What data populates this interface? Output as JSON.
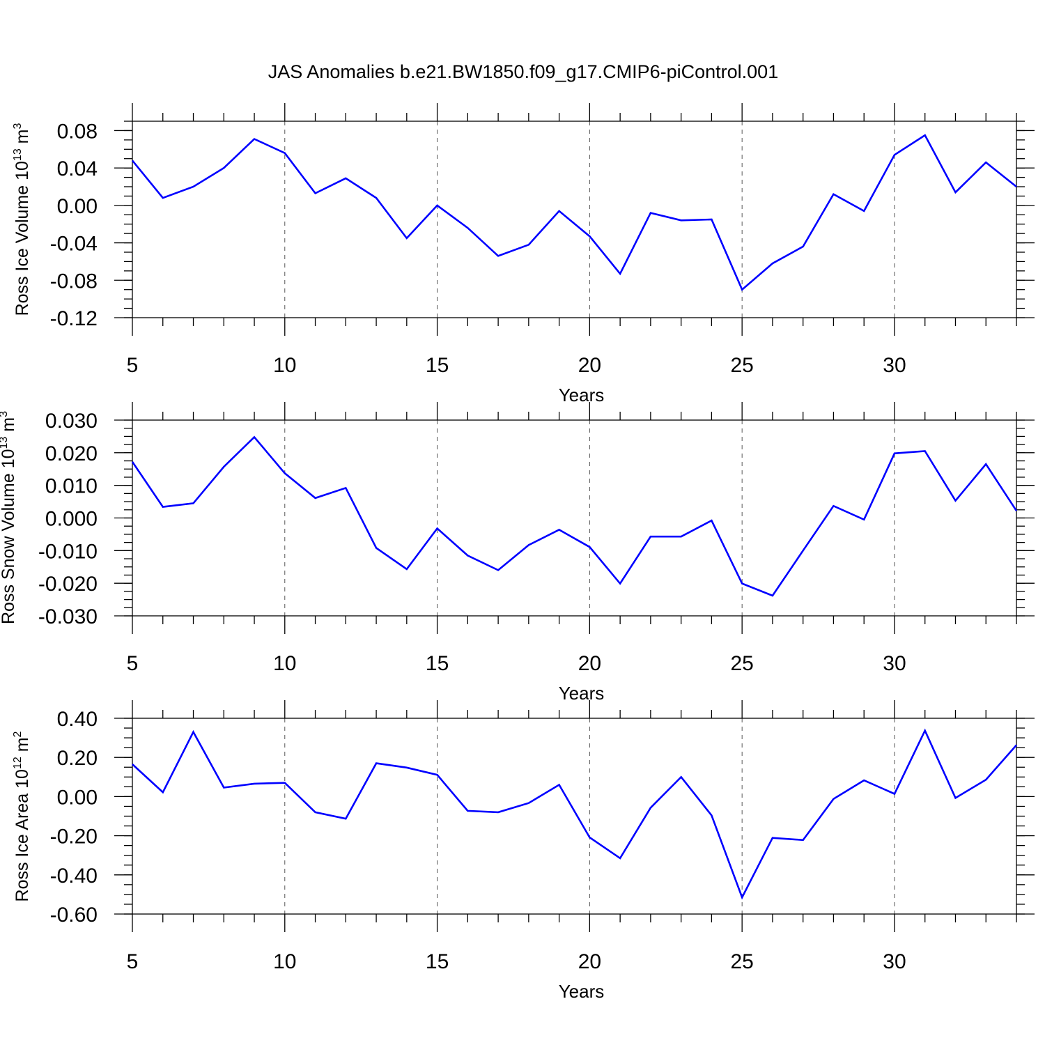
{
  "title": "JAS Anomalies b.e21.BW1850.f09_g17.CMIP6-piControl.001",
  "line_color": "#0000ff",
  "chart_data": [
    {
      "type": "line",
      "panel": "ross-ice-volume",
      "ylabel": "Ross Ice Volume 10",
      "ylabel_exp": "13",
      "ylabel_unit": " m",
      "ylabel_unit_exp": "3",
      "xlabel": "Years",
      "xlim": [
        5,
        34
      ],
      "ylim": [
        -0.12,
        0.09
      ],
      "x_ticks": [
        5,
        10,
        15,
        20,
        25,
        30
      ],
      "x_tick_labels": [
        "5",
        "10",
        "15",
        "20",
        "25",
        "30"
      ],
      "y_ticks": [
        -0.12,
        -0.08,
        -0.04,
        0,
        0.04,
        0.08
      ],
      "y_tick_labels": [
        "-0.12",
        "-0.08",
        "-0.04",
        "0.00",
        "0.04",
        "0.08"
      ],
      "y_minor_step": 0.01,
      "x": [
        5,
        6,
        7,
        8,
        9,
        10,
        11,
        12,
        13,
        14,
        15,
        16,
        17,
        18,
        19,
        20,
        21,
        22,
        23,
        24,
        25,
        26,
        27,
        28,
        29,
        30,
        31,
        32,
        33,
        34
      ],
      "values": [
        0.048,
        0.008,
        0.02,
        0.04,
        0.071,
        0.056,
        0.013,
        0.029,
        0.008,
        -0.035,
        0.0,
        -0.024,
        -0.054,
        -0.042,
        -0.006,
        -0.033,
        -0.073,
        -0.008,
        -0.016,
        -0.015,
        -0.09,
        -0.062,
        -0.044,
        0.012,
        -0.006,
        0.054,
        0.075,
        0.014,
        0.046,
        0.02
      ]
    },
    {
      "type": "line",
      "panel": "ross-snow-volume",
      "ylabel": "Ross Snow Volume 10",
      "ylabel_exp": "13",
      "ylabel_unit": " m",
      "ylabel_unit_exp": "3",
      "xlabel": "Years",
      "xlim": [
        5,
        34
      ],
      "ylim": [
        -0.03,
        0.03
      ],
      "x_ticks": [
        5,
        10,
        15,
        20,
        25,
        30
      ],
      "x_tick_labels": [
        "5",
        "10",
        "15",
        "20",
        "25",
        "30"
      ],
      "y_ticks": [
        -0.03,
        -0.02,
        -0.01,
        0,
        0.01,
        0.02,
        0.03
      ],
      "y_tick_labels": [
        "-0.030",
        "-0.020",
        "-0.010",
        "0.000",
        "0.010",
        "0.020",
        "0.030"
      ],
      "y_minor_step": 0.0025,
      "x": [
        5,
        6,
        7,
        8,
        9,
        10,
        11,
        12,
        13,
        14,
        15,
        16,
        17,
        18,
        19,
        20,
        21,
        22,
        23,
        24,
        25,
        26,
        27,
        28,
        29,
        30,
        31,
        32,
        33,
        34
      ],
      "values": [
        0.0172,
        0.0034,
        0.0045,
        0.0157,
        0.0248,
        0.0137,
        0.0061,
        0.0092,
        -0.0092,
        -0.0157,
        -0.0032,
        -0.0115,
        -0.016,
        -0.0083,
        -0.0036,
        -0.0089,
        -0.0201,
        -0.0057,
        -0.0057,
        -0.0008,
        -0.0201,
        -0.0238,
        -0.01,
        0.0037,
        -0.0005,
        0.0198,
        0.0205,
        0.0053,
        0.0165,
        0.0022
      ]
    },
    {
      "type": "line",
      "panel": "ross-ice-area",
      "ylabel": "Ross Ice Area 10",
      "ylabel_exp": "12",
      "ylabel_unit": " m",
      "ylabel_unit_exp": "2",
      "xlabel": "Years",
      "xlim": [
        5,
        34
      ],
      "ylim": [
        -0.6,
        0.4
      ],
      "x_ticks": [
        5,
        10,
        15,
        20,
        25,
        30
      ],
      "x_tick_labels": [
        "5",
        "10",
        "15",
        "20",
        "25",
        "30"
      ],
      "y_ticks": [
        -0.6,
        -0.4,
        -0.2,
        0,
        0.2,
        0.4
      ],
      "y_tick_labels": [
        "-0.60",
        "-0.40",
        "-0.20",
        "0.00",
        "0.20",
        "0.40"
      ],
      "y_minor_step": 0.05,
      "x": [
        5,
        6,
        7,
        8,
        9,
        10,
        11,
        12,
        13,
        14,
        15,
        16,
        17,
        18,
        19,
        20,
        21,
        22,
        23,
        24,
        25,
        26,
        27,
        28,
        29,
        30,
        31,
        32,
        33,
        34
      ],
      "values": [
        0.165,
        0.022,
        0.33,
        0.046,
        0.066,
        0.07,
        -0.08,
        -0.113,
        0.17,
        0.148,
        0.111,
        -0.073,
        -0.08,
        -0.033,
        0.06,
        -0.209,
        -0.315,
        -0.057,
        0.1,
        -0.096,
        -0.515,
        -0.211,
        -0.222,
        -0.012,
        0.083,
        0.014,
        0.337,
        -0.007,
        0.086,
        0.263
      ]
    }
  ]
}
